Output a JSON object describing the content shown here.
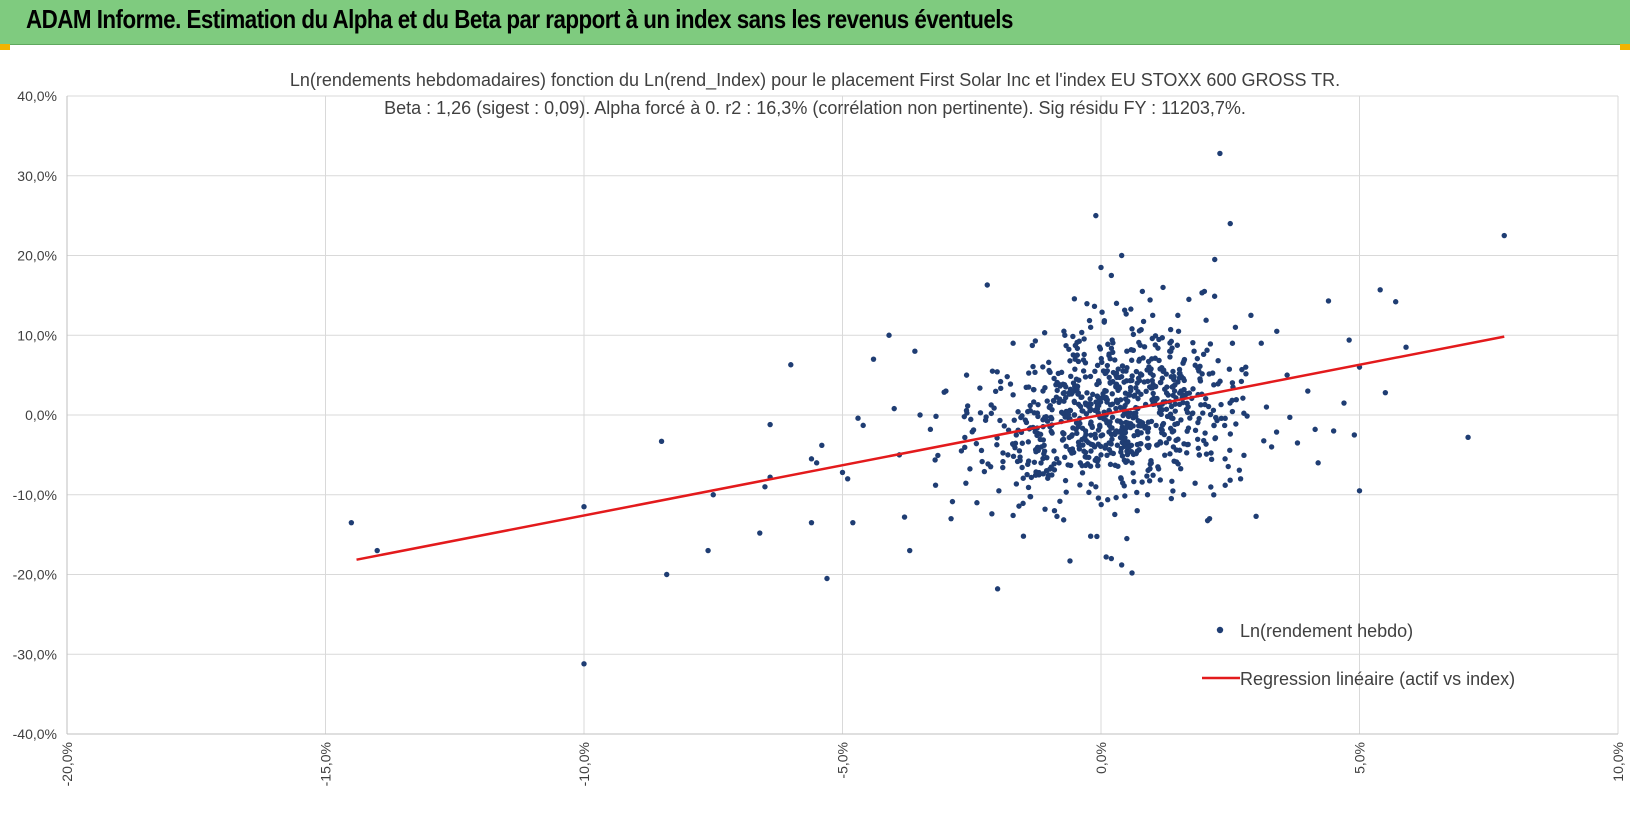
{
  "header": {
    "title": "ADAM Informe. Estimation du Alpha et du Beta par rapport à un index sans les revenus éventuels"
  },
  "colors": {
    "header_bg": "#7fcb7f",
    "corner_accent": "#f3b400",
    "points": "#1f3d73",
    "regression": "#e31a1c",
    "grid": "#d9d9d9"
  },
  "chart_data": {
    "type": "scatter",
    "title": "Ln(rendements hebdomadaires) fonction du Ln(rend_Index) pour le placement First Solar Inc et l'index EU STOXX 600 GROSS TR.",
    "subtitle": "Beta : 1,26 (sigest : 0,09).  Alpha forcé à 0. r2 : 16,3% (corrélation non pertinente). Sig résidu FY : 11203,7%.",
    "xlim": [
      -0.2,
      0.1
    ],
    "ylim": [
      -0.4,
      0.4
    ],
    "x_ticks": [
      "-20,0%",
      "-15,0%",
      "-10,0%",
      "-5,0%",
      "0,0%",
      "5,0%",
      "10,0%"
    ],
    "y_ticks": [
      "40,0%",
      "30,0%",
      "20,0%",
      "10,0%",
      "0,0%",
      "-10,0%",
      "-20,0%",
      "-30,0%",
      "-40,0%"
    ],
    "grid": true,
    "legend_position": "bottom-right",
    "legend": [
      "Ln(rendement hebdo)",
      "Regression linéaire (actif vs index)"
    ],
    "regression": {
      "slope": 1.26,
      "intercept": 0,
      "x_range": [
        -0.144,
        0.078
      ]
    },
    "series": [
      {
        "name": "Ln(rendement hebdo)",
        "points": [
          [
            -0.145,
            -0.135
          ],
          [
            -0.14,
            -0.17
          ],
          [
            -0.1,
            -0.115
          ],
          [
            -0.1,
            -0.312
          ],
          [
            -0.085,
            -0.033
          ],
          [
            -0.084,
            -0.2
          ],
          [
            -0.076,
            -0.17
          ],
          [
            -0.075,
            -0.1
          ],
          [
            -0.066,
            -0.148
          ],
          [
            -0.065,
            -0.09
          ],
          [
            -0.064,
            -0.078
          ],
          [
            -0.064,
            -0.012
          ],
          [
            -0.06,
            0.063
          ],
          [
            -0.056,
            -0.055
          ],
          [
            -0.056,
            -0.135
          ],
          [
            -0.053,
            -0.205
          ],
          [
            -0.055,
            -0.06
          ],
          [
            -0.054,
            -0.038
          ],
          [
            -0.05,
            -0.072
          ],
          [
            -0.049,
            -0.08
          ],
          [
            -0.048,
            -0.135
          ],
          [
            -0.047,
            -0.004
          ],
          [
            -0.046,
            -0.013
          ],
          [
            -0.044,
            0.07
          ],
          [
            -0.041,
            0.1
          ],
          [
            -0.04,
            0.008
          ],
          [
            -0.039,
            -0.05
          ],
          [
            -0.038,
            -0.128
          ],
          [
            -0.037,
            -0.17
          ],
          [
            -0.036,
            0.08
          ],
          [
            -0.035,
            0.0
          ],
          [
            -0.033,
            -0.018
          ],
          [
            -0.032,
            -0.088
          ],
          [
            -0.03,
            0.03
          ],
          [
            -0.029,
            -0.13
          ],
          [
            -0.027,
            -0.045
          ],
          [
            -0.026,
            0.05
          ],
          [
            -0.024,
            -0.11
          ],
          [
            -0.022,
            0.163
          ],
          [
            -0.021,
            0.055
          ],
          [
            -0.02,
            -0.218
          ],
          [
            -0.018,
            -0.05
          ],
          [
            -0.017,
            0.09
          ],
          [
            -0.015,
            -0.152
          ],
          [
            -0.014,
            0.035
          ],
          [
            -0.012,
            -0.075
          ],
          [
            -0.011,
            -0.038
          ],
          [
            -0.01,
            0.055
          ],
          [
            -0.009,
            -0.12
          ],
          [
            -0.008,
            0.02
          ],
          [
            -0.007,
            0.1
          ],
          [
            -0.006,
            -0.183
          ],
          [
            -0.005,
            0.07
          ],
          [
            -0.004,
            -0.06
          ],
          [
            -0.003,
            0.015
          ],
          [
            -0.002,
            0.11
          ],
          [
            -0.002,
            -0.152
          ],
          [
            -0.001,
            0.25
          ],
          [
            -0.001,
            -0.09
          ],
          [
            0.0,
            0.185
          ],
          [
            0.0,
            -0.05
          ],
          [
            0.001,
            0.03
          ],
          [
            0.001,
            -0.178
          ],
          [
            0.002,
            0.175
          ],
          [
            0.002,
            -0.18
          ],
          [
            0.003,
            0.14
          ],
          [
            0.003,
            -0.02
          ],
          [
            0.004,
            0.2
          ],
          [
            0.004,
            -0.188
          ],
          [
            0.005,
            0.08
          ],
          [
            0.005,
            -0.155
          ],
          [
            0.006,
            0.108
          ],
          [
            0.006,
            -0.198
          ],
          [
            0.007,
            0.04
          ],
          [
            0.007,
            -0.12
          ],
          [
            0.008,
            0.155
          ],
          [
            0.009,
            -0.1
          ],
          [
            0.01,
            0.125
          ],
          [
            0.011,
            -0.065
          ],
          [
            0.012,
            0.16
          ],
          [
            0.013,
            0.025
          ],
          [
            0.014,
            -0.04
          ],
          [
            0.015,
            0.105
          ],
          [
            0.016,
            -0.1
          ],
          [
            0.017,
            0.145
          ],
          [
            0.018,
            0.08
          ],
          [
            0.019,
            -0.05
          ],
          [
            0.02,
            0.155
          ],
          [
            0.021,
            -0.13
          ],
          [
            0.022,
            0.195
          ],
          [
            0.023,
            0.328
          ],
          [
            0.024,
            -0.055
          ],
          [
            0.025,
            0.24
          ],
          [
            0.026,
            0.11
          ],
          [
            0.027,
            -0.08
          ],
          [
            0.028,
            0.06
          ],
          [
            0.029,
            0.125
          ],
          [
            0.03,
            -0.127
          ],
          [
            0.031,
            0.09
          ],
          [
            0.032,
            0.01
          ],
          [
            0.033,
            -0.04
          ],
          [
            0.034,
            0.105
          ],
          [
            0.036,
            0.05
          ],
          [
            0.038,
            -0.035
          ],
          [
            0.04,
            0.03
          ],
          [
            0.042,
            -0.06
          ],
          [
            0.044,
            0.143
          ],
          [
            0.045,
            -0.02
          ],
          [
            0.047,
            0.015
          ],
          [
            0.048,
            0.094
          ],
          [
            0.049,
            -0.025
          ],
          [
            0.05,
            0.06
          ],
          [
            0.05,
            -0.095
          ],
          [
            0.054,
            0.157
          ],
          [
            0.055,
            0.028
          ],
          [
            0.057,
            0.142
          ],
          [
            0.059,
            0.085
          ],
          [
            0.071,
            -0.028
          ],
          [
            0.078,
            0.225
          ]
        ]
      }
    ]
  }
}
